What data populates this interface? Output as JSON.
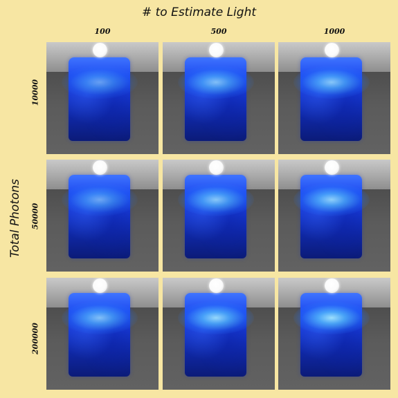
{
  "title": "# to Estimate Light",
  "y_title": "Total Photons",
  "columns": [
    "100",
    "500",
    "1000"
  ],
  "rows": [
    "10000",
    "50000",
    "200000"
  ],
  "cells": [
    {
      "row": "10000",
      "col": "100",
      "glow": 0.55
    },
    {
      "row": "10000",
      "col": "500",
      "glow": 0.75
    },
    {
      "row": "10000",
      "col": "1000",
      "glow": 0.8
    },
    {
      "row": "50000",
      "col": "100",
      "glow": 0.6
    },
    {
      "row": "50000",
      "col": "500",
      "glow": 0.8
    },
    {
      "row": "50000",
      "col": "1000",
      "glow": 0.85
    },
    {
      "row": "200000",
      "col": "100",
      "glow": 0.75
    },
    {
      "row": "200000",
      "col": "500",
      "glow": 0.9
    },
    {
      "row": "200000",
      "col": "1000",
      "glow": 0.95
    }
  ]
}
